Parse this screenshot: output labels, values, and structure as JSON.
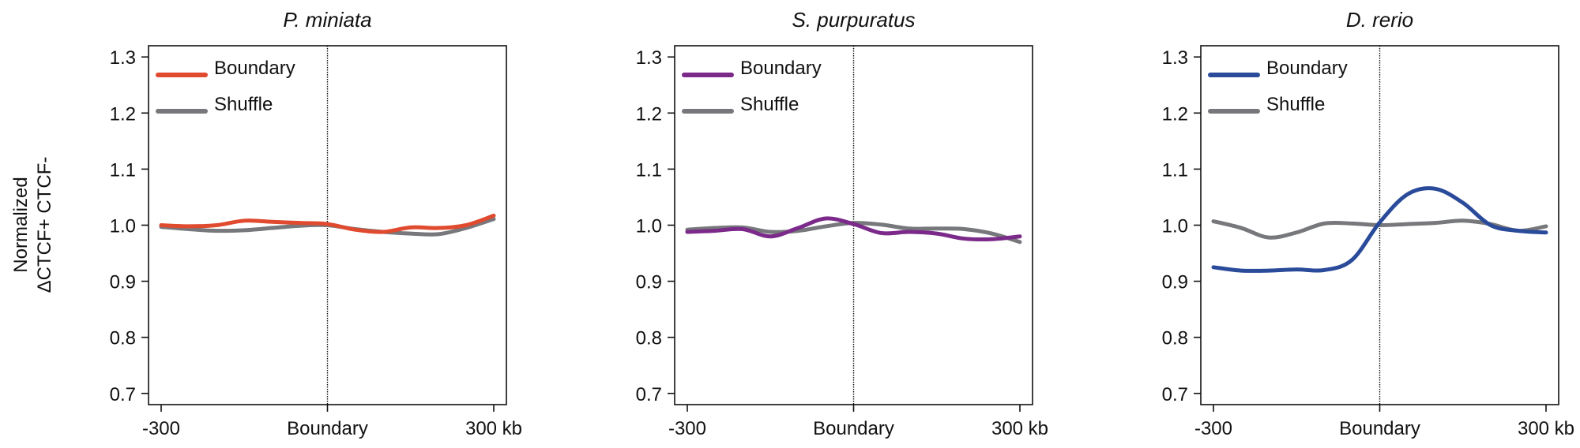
{
  "ylabel_lines": [
    "Normalized",
    "ΔCTCF+ CTCF-"
  ],
  "colors": {
    "shuffle": "#77787b",
    "axis": "#111111"
  },
  "chart_data": [
    {
      "type": "line",
      "title": "P. miniata",
      "x_ticks": [
        "-300",
        "Boundary",
        "300 kb"
      ],
      "x": [
        -300,
        -250,
        -200,
        -150,
        -100,
        -50,
        0,
        50,
        100,
        150,
        200,
        250,
        300
      ],
      "ylim": [
        0.68,
        1.32
      ],
      "y_ticks": [
        0.7,
        0.8,
        0.9,
        1.0,
        1.1,
        1.2,
        1.3
      ],
      "legend": "top-left",
      "center_line": true,
      "series": [
        {
          "name": "Boundary",
          "color": "#e04a2f",
          "values": [
            1.0,
            0.998,
            1.0,
            1.008,
            1.006,
            1.004,
            1.002,
            0.992,
            0.988,
            0.996,
            0.995,
            1.0,
            1.017
          ]
        },
        {
          "name": "Shuffle",
          "color": "#77787b",
          "values": [
            0.997,
            0.993,
            0.99,
            0.991,
            0.995,
            0.999,
            1.0,
            0.993,
            0.988,
            0.985,
            0.984,
            0.995,
            1.011
          ]
        }
      ]
    },
    {
      "type": "line",
      "title": "S. purpuratus",
      "x_ticks": [
        "-300",
        "Boundary",
        "300 kb"
      ],
      "x": [
        -300,
        -250,
        -200,
        -150,
        -100,
        -50,
        0,
        50,
        100,
        150,
        200,
        250,
        300
      ],
      "ylim": [
        0.68,
        1.32
      ],
      "y_ticks": [
        0.7,
        0.8,
        0.9,
        1.0,
        1.1,
        1.2,
        1.3
      ],
      "legend": "top-left",
      "center_line": true,
      "series": [
        {
          "name": "Boundary",
          "color": "#7b2a8a",
          "values": [
            0.988,
            0.99,
            0.993,
            0.98,
            0.995,
            1.012,
            1.002,
            0.986,
            0.988,
            0.985,
            0.976,
            0.975,
            0.98
          ]
        },
        {
          "name": "Shuffle",
          "color": "#77787b",
          "values": [
            0.992,
            0.995,
            0.996,
            0.988,
            0.99,
            0.998,
            1.004,
            1.001,
            0.994,
            0.994,
            0.993,
            0.985,
            0.97
          ]
        }
      ]
    },
    {
      "type": "line",
      "title": "D. rerio",
      "x_ticks": [
        "-300",
        "Boundary",
        "300 kb"
      ],
      "x": [
        -300,
        -250,
        -200,
        -150,
        -100,
        -50,
        0,
        50,
        100,
        150,
        200,
        250,
        300
      ],
      "ylim": [
        0.68,
        1.32
      ],
      "y_ticks": [
        0.7,
        0.8,
        0.9,
        1.0,
        1.1,
        1.2,
        1.3
      ],
      "legend": "top-left",
      "center_line": true,
      "series": [
        {
          "name": "Boundary",
          "color": "#2a4a9a",
          "values": [
            0.925,
            0.919,
            0.919,
            0.921,
            0.92,
            0.938,
            1.005,
            1.055,
            1.065,
            1.04,
            1.0,
            0.99,
            0.987
          ]
        },
        {
          "name": "Shuffle",
          "color": "#77787b",
          "values": [
            1.007,
            0.995,
            0.978,
            0.987,
            1.003,
            1.003,
            1.0,
            1.002,
            1.004,
            1.008,
            1.002,
            0.99,
            0.998
          ]
        }
      ]
    }
  ]
}
